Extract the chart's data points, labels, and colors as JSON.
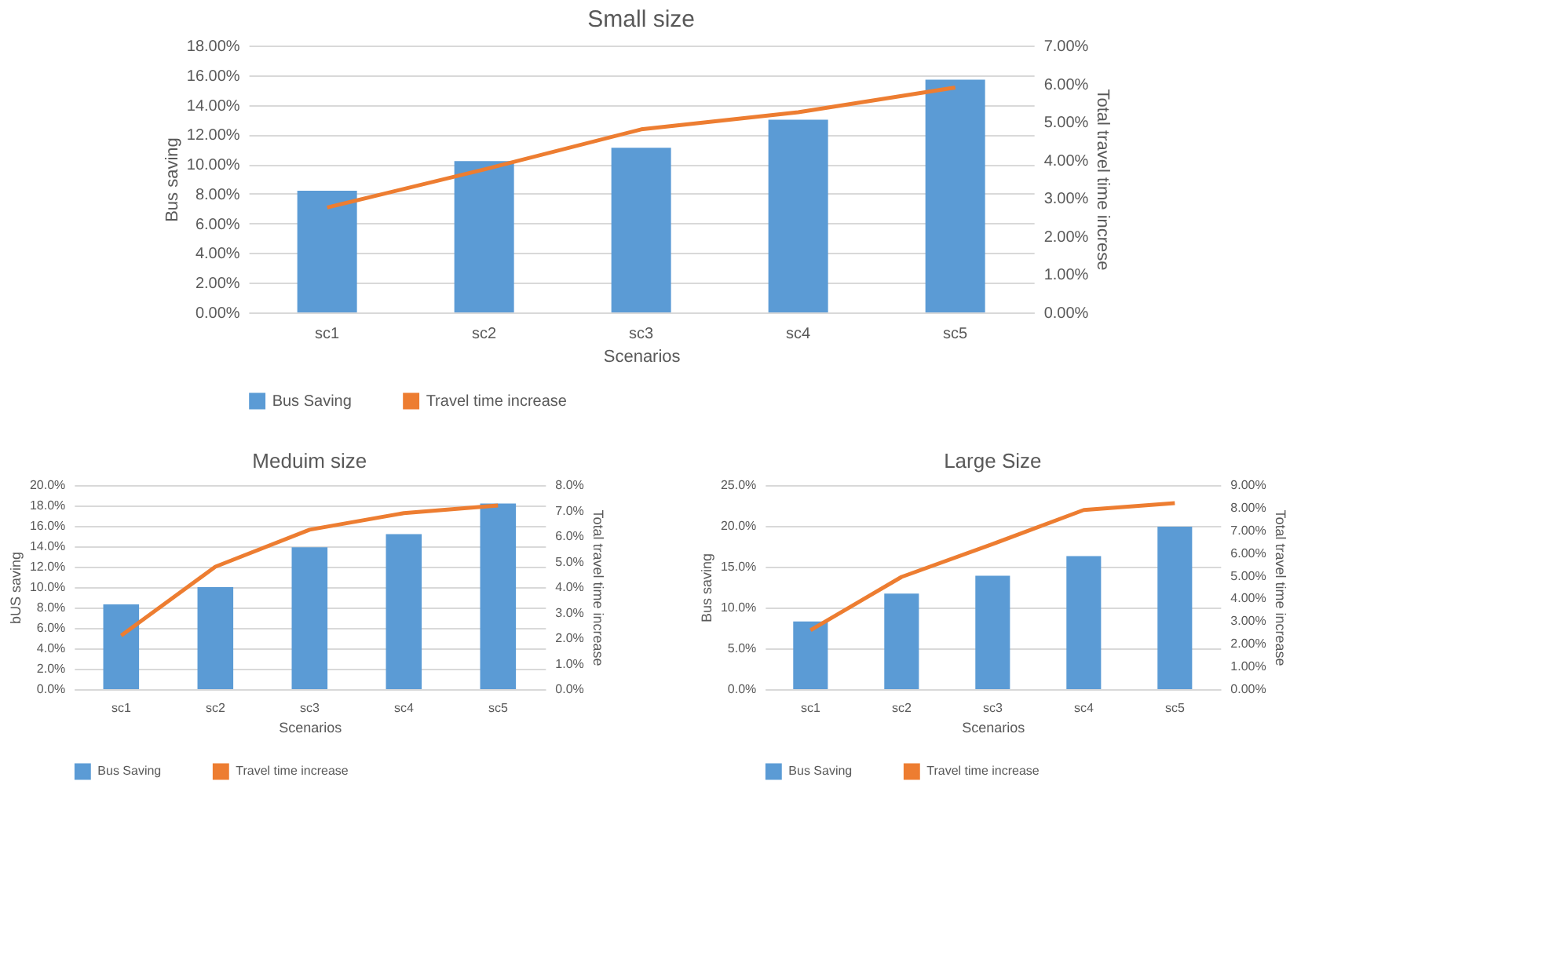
{
  "chart_data": [
    {
      "type": "bar",
      "title": "Small size",
      "xlabel": "Scenarios",
      "ylabel": "Bus saving",
      "y2label": "Total travel time increse",
      "categories": [
        "sc1",
        "sc2",
        "sc3",
        "sc4",
        "sc5"
      ],
      "series": [
        {
          "name": "Bus Saving",
          "color": "#5b9bd5",
          "values": [
            8.2,
            10.2,
            11.1,
            13.0,
            15.7
          ]
        },
        {
          "name": "Travel time increase",
          "type": "line",
          "axis": "y2",
          "color": "#ed7d31",
          "values": [
            2.75,
            3.75,
            4.8,
            5.25,
            5.9
          ]
        }
      ],
      "ylim": [
        0,
        18
      ],
      "yticks": [
        {
          "value": 0,
          "label": "0.00%"
        },
        {
          "value": 2,
          "label": "2.00%"
        },
        {
          "value": 4,
          "label": "4.00%"
        },
        {
          "value": 6,
          "label": "6.00%"
        },
        {
          "value": 8,
          "label": "8.00%"
        },
        {
          "value": 10,
          "label": "10.00%"
        },
        {
          "value": 12,
          "label": "12.00%"
        },
        {
          "value": 14,
          "label": "14.00%"
        },
        {
          "value": 16,
          "label": "16.00%"
        },
        {
          "value": 18,
          "label": "18.00%"
        }
      ],
      "y2lim": [
        0,
        7
      ],
      "y2ticks": [
        {
          "value": 0,
          "label": "0.00%"
        },
        {
          "value": 1,
          "label": "1.00%"
        },
        {
          "value": 2,
          "label": "2.00%"
        },
        {
          "value": 3,
          "label": "3.00%"
        },
        {
          "value": 4,
          "label": "4.00%"
        },
        {
          "value": 5,
          "label": "5.00%"
        },
        {
          "value": 6,
          "label": "6.00%"
        },
        {
          "value": 7,
          "label": "7.00%"
        }
      ],
      "grid": "y",
      "legend": "bottom"
    },
    {
      "type": "bar",
      "title": "Meduim size",
      "xlabel": "Scenarios",
      "ylabel": "bUS saving",
      "y2label": "Total travel time increase",
      "categories": [
        "sc1",
        "sc2",
        "sc3",
        "sc4",
        "sc5"
      ],
      "series": [
        {
          "name": "Bus Saving",
          "color": "#5b9bd5",
          "values": [
            8.3,
            10.0,
            13.9,
            15.2,
            18.2
          ]
        },
        {
          "name": "Travel time increase",
          "type": "line",
          "axis": "y2",
          "color": "#ed7d31",
          "values": [
            2.1,
            4.8,
            6.25,
            6.9,
            7.2
          ]
        }
      ],
      "ylim": [
        0,
        20
      ],
      "yticks": [
        {
          "value": 0,
          "label": "0.0%"
        },
        {
          "value": 2,
          "label": "2.0%"
        },
        {
          "value": 4,
          "label": "4.0%"
        },
        {
          "value": 6,
          "label": "6.0%"
        },
        {
          "value": 8,
          "label": "8.0%"
        },
        {
          "value": 10,
          "label": "10.0%"
        },
        {
          "value": 12,
          "label": "12.0%"
        },
        {
          "value": 14,
          "label": "14.0%"
        },
        {
          "value": 16,
          "label": "16.0%"
        },
        {
          "value": 18,
          "label": "18.0%"
        },
        {
          "value": 20,
          "label": "20.0%"
        }
      ],
      "y2lim": [
        0,
        8
      ],
      "y2ticks": [
        {
          "value": 0,
          "label": "0.0%"
        },
        {
          "value": 1,
          "label": "1.0%"
        },
        {
          "value": 2,
          "label": "2.0%"
        },
        {
          "value": 3,
          "label": "3.0%"
        },
        {
          "value": 4,
          "label": "4.0%"
        },
        {
          "value": 5,
          "label": "5.0%"
        },
        {
          "value": 6,
          "label": "6.0%"
        },
        {
          "value": 7,
          "label": "7.0%"
        },
        {
          "value": 8,
          "label": "8.0%"
        }
      ],
      "grid": "y",
      "legend": "bottom"
    },
    {
      "type": "bar",
      "title": "Large Size",
      "xlabel": "Scenarios",
      "ylabel": "Bus  saving",
      "y2label": "Total travel time increase",
      "categories": [
        "sc1",
        "sc2",
        "sc3",
        "sc4",
        "sc5"
      ],
      "series": [
        {
          "name": "Bus Saving",
          "color": "#5b9bd5",
          "values": [
            8.3,
            11.7,
            13.9,
            16.3,
            19.9
          ]
        },
        {
          "name": "Travel time increase",
          "type": "line",
          "axis": "y2",
          "color": "#ed7d31",
          "values": [
            2.6,
            4.95,
            6.4,
            7.9,
            8.2
          ]
        }
      ],
      "ylim": [
        0,
        25
      ],
      "yticks": [
        {
          "value": 0,
          "label": "0.0%"
        },
        {
          "value": 5,
          "label": "5.0%"
        },
        {
          "value": 10,
          "label": "10.0%"
        },
        {
          "value": 15,
          "label": "15.0%"
        },
        {
          "value": 20,
          "label": "20.0%"
        },
        {
          "value": 25,
          "label": "25.0%"
        }
      ],
      "y2lim": [
        0,
        9
      ],
      "y2ticks": [
        {
          "value": 0,
          "label": "0.00%"
        },
        {
          "value": 1,
          "label": "1.00%"
        },
        {
          "value": 2,
          "label": "2.00%"
        },
        {
          "value": 3,
          "label": "3.00%"
        },
        {
          "value": 4,
          "label": "4.00%"
        },
        {
          "value": 5,
          "label": "5.00%"
        },
        {
          "value": 6,
          "label": "6.00%"
        },
        {
          "value": 7,
          "label": "7.00%"
        },
        {
          "value": 8,
          "label": "8.00%"
        },
        {
          "value": 9,
          "label": "9.00%"
        }
      ],
      "grid": "y",
      "legend": "bottom"
    }
  ]
}
